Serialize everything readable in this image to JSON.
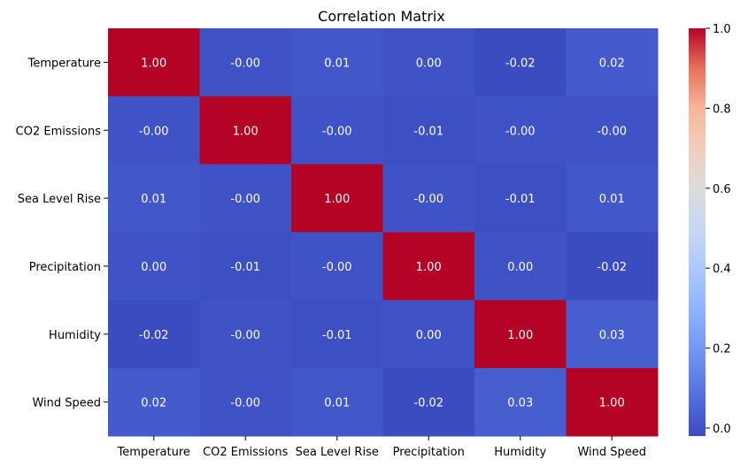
{
  "chart_data": {
    "type": "heatmap",
    "title": "Correlation Matrix",
    "xlabel": "",
    "ylabel": "",
    "row_labels": [
      "Temperature",
      "CO2 Emissions",
      "Sea Level Rise",
      "Precipitation",
      "Humidity",
      "Wind Speed"
    ],
    "col_labels": [
      "Temperature",
      "CO2 Emissions",
      "Sea Level Rise",
      "Precipitation",
      "Humidity",
      "Wind Speed"
    ],
    "matrix": [
      [
        1.0,
        -0.0,
        0.01,
        0.0,
        -0.02,
        0.02
      ],
      [
        -0.0,
        1.0,
        -0.0,
        -0.01,
        -0.0,
        -0.0
      ],
      [
        0.01,
        -0.0,
        1.0,
        -0.0,
        -0.01,
        0.01
      ],
      [
        0.0,
        -0.01,
        -0.0,
        1.0,
        0.0,
        -0.02
      ],
      [
        -0.02,
        -0.0,
        -0.01,
        0.0,
        1.0,
        0.03
      ],
      [
        0.02,
        -0.0,
        0.01,
        -0.02,
        0.03,
        1.0
      ]
    ],
    "value_format": "0.00",
    "colormap": "coolwarm",
    "color_range": [
      -0.02,
      1.0
    ],
    "colorbar_ticks": [
      "0.0",
      "0.2",
      "0.4",
      "0.6",
      "0.8",
      "1.0"
    ],
    "colorbar_tick_values": [
      0.0,
      0.2,
      0.4,
      0.6,
      0.8,
      1.0
    ]
  }
}
